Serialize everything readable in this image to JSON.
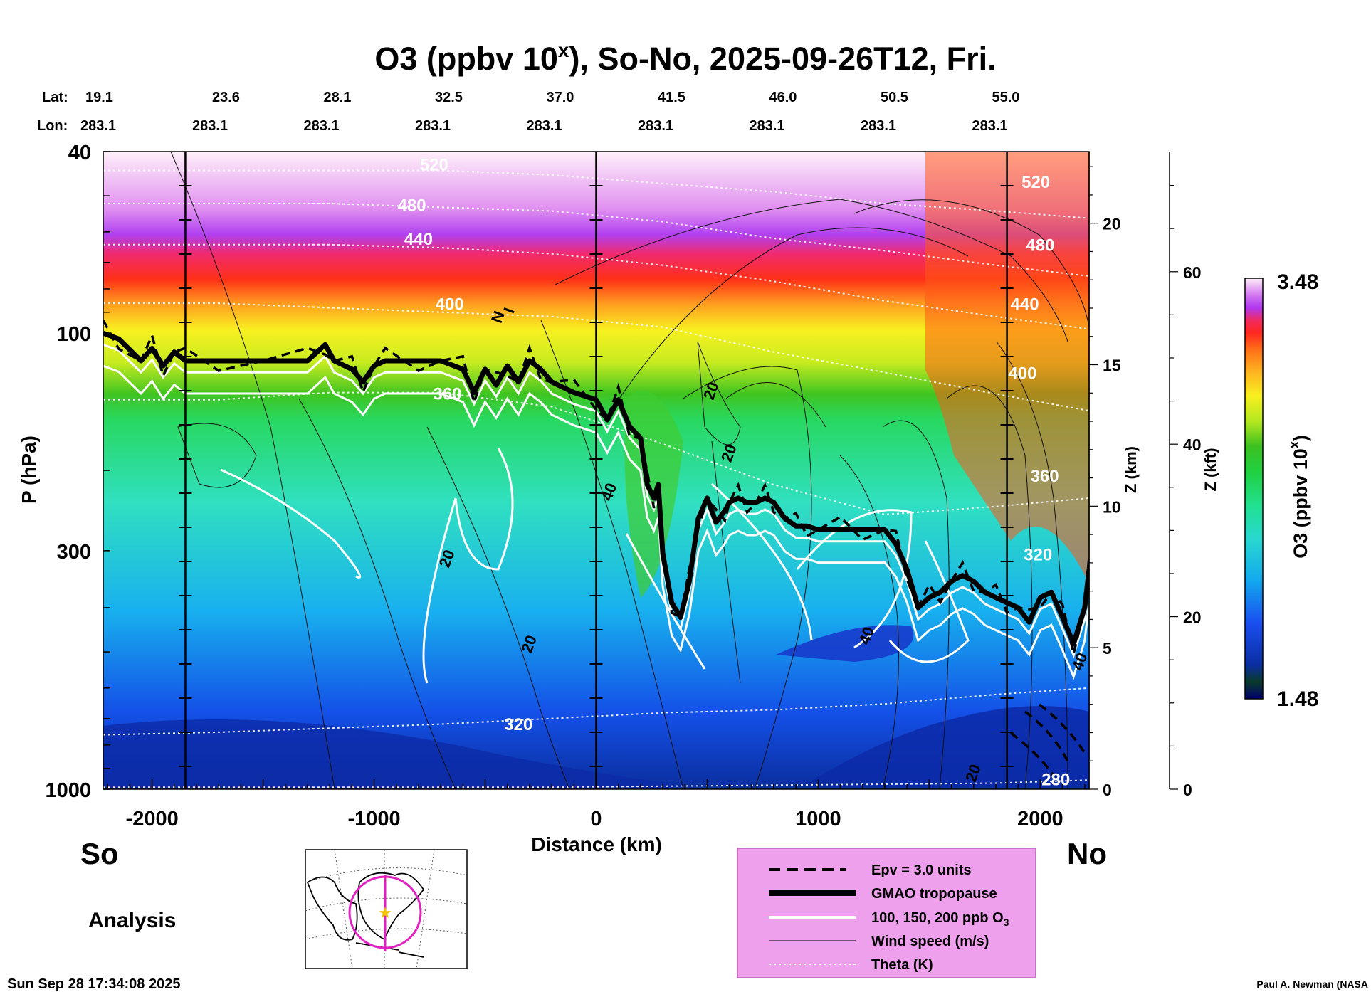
{
  "chart_data": {
    "type": "heatmap",
    "title_prefix": "O3 (ppbv 10",
    "title_sup": "x",
    "title_suffix": "), So-No, 2025-09-26T12, Fri.",
    "lat_label": "Lat:",
    "lon_label": "Lon:",
    "lats": [
      "19.1",
      "23.6",
      "28.1",
      "32.5",
      "37.0",
      "41.5",
      "46.0",
      "50.5",
      "55.0"
    ],
    "lons": [
      "283.1",
      "283.1",
      "283.1",
      "283.1",
      "283.1",
      "283.1",
      "283.1",
      "283.1",
      "283.1"
    ],
    "xlabel": "Distance (km)",
    "xlim": [
      -2220,
      2220
    ],
    "xticks": [
      -2000,
      -1000,
      0,
      1000,
      2000
    ],
    "xtick_labels": [
      "-2000",
      "-1000",
      "0",
      "1000",
      "2000"
    ],
    "ylabel": "P (hPa)",
    "ylim": [
      1000,
      40
    ],
    "yticks": [
      40,
      100,
      300,
      1000
    ],
    "ytick_labels": [
      "40",
      "100",
      "300",
      "1000"
    ],
    "z_km_label": "Z (km)",
    "z_km_ticks": [
      0,
      5,
      10,
      15,
      20
    ],
    "z_km_tick_labels": [
      "0",
      "5",
      "10",
      "15",
      "20"
    ],
    "z_kft_label": "Z (kft)",
    "z_kft_ticks": [
      0,
      20,
      40,
      60
    ],
    "z_kft_tick_labels": [
      "0",
      "20",
      "40",
      "60"
    ],
    "colorbar": {
      "label_prefix": "O3 (ppbv 10",
      "label_sup": "x",
      "label_suffix": ")",
      "min": 1.48,
      "max": 3.48,
      "min_label": "1.48",
      "max_label": "3.48"
    },
    "section_markers_km": [
      -1850,
      0,
      1850
    ],
    "theta_levels": [
      {
        "k": 280,
        "p": [
          990,
          990,
          990,
          990,
          990,
          985,
          980,
          975,
          970,
          955
        ]
      },
      {
        "k": 320,
        "p": [
          760,
          750,
          735,
          720,
          700,
          680,
          670,
          650,
          620,
          600
        ]
      },
      {
        "k": 360,
        "p": [
          140,
          140,
          135,
          135,
          145,
          175,
          215,
          250,
          240,
          230
        ]
      },
      {
        "k": 400,
        "p": [
          86,
          86,
          88,
          90,
          92,
          97,
          110,
          122,
          136,
          148
        ]
      },
      {
        "k": 440,
        "p": [
          64,
          64,
          64,
          65,
          67,
          71,
          77,
          85,
          92,
          98
        ]
      },
      {
        "k": 480,
        "p": [
          52,
          52,
          52,
          53,
          54,
          57,
          62,
          66,
          71,
          75
        ]
      },
      {
        "k": 520,
        "p": [
          44,
          44,
          44,
          44,
          45,
          47,
          49,
          52,
          54,
          56
        ]
      }
    ],
    "theta_x_km": [
      -2220,
      -1700,
      -1200,
      -700,
      -200,
      300,
      800,
      1300,
      1800,
      2220
    ],
    "theta_labels": [
      {
        "text": "520",
        "x_km": -730,
        "p": 44
      },
      {
        "text": "480",
        "x_km": -830,
        "p": 54
      },
      {
        "text": "440",
        "x_km": -800,
        "p": 64
      },
      {
        "text": "400",
        "x_km": -660,
        "p": 89
      },
      {
        "text": "360",
        "x_km": -670,
        "p": 140
      },
      {
        "text": "320",
        "x_km": -350,
        "p": 742
      },
      {
        "text": "520",
        "x_km": 1980,
        "p": 48
      },
      {
        "text": "480",
        "x_km": 2000,
        "p": 66
      },
      {
        "text": "440",
        "x_km": 1930,
        "p": 89
      },
      {
        "text": "400",
        "x_km": 1920,
        "p": 126
      },
      {
        "text": "360",
        "x_km": 2020,
        "p": 212
      },
      {
        "text": "320",
        "x_km": 1990,
        "p": 315
      },
      {
        "text": "280",
        "x_km": 2070,
        "p": 980
      }
    ],
    "tropopause": {
      "x_km": [
        -2220,
        -2150,
        -2050,
        -2000,
        -1950,
        -1900,
        -1850,
        -1700,
        -1500,
        -1300,
        -1220,
        -1180,
        -1100,
        -1050,
        -1000,
        -950,
        -800,
        -700,
        -600,
        -550,
        -500,
        -450,
        -400,
        -350,
        -300,
        -250,
        -200,
        -100,
        0,
        50,
        100,
        150,
        200,
        230,
        260,
        280,
        300,
        340,
        380,
        420,
        460,
        500,
        540,
        580,
        600,
        640,
        680,
        720,
        760,
        800,
        850,
        900,
        950,
        1000,
        1100,
        1200,
        1300,
        1350,
        1400,
        1450,
        1500,
        1550,
        1600,
        1650,
        1700,
        1750,
        1800,
        1850,
        1900,
        1950,
        2000,
        2050,
        2100,
        2150,
        2200,
        2220
      ],
      "p": [
        100,
        103,
        115,
        108,
        118,
        110,
        115,
        115,
        115,
        115,
        106,
        115,
        120,
        128,
        118,
        115,
        115,
        115,
        120,
        135,
        120,
        130,
        118,
        128,
        115,
        120,
        128,
        135,
        140,
        155,
        140,
        160,
        170,
        215,
        230,
        215,
        305,
        390,
        420,
        350,
        255,
        230,
        260,
        245,
        235,
        230,
        235,
        235,
        230,
        235,
        255,
        265,
        265,
        270,
        270,
        270,
        270,
        290,
        330,
        400,
        380,
        370,
        350,
        340,
        350,
        370,
        380,
        390,
        400,
        430,
        380,
        370,
        420,
        480,
        400,
        330
      ],
      "label": "GMAO tropopause"
    },
    "annotations": [
      {
        "text": "20",
        "x_km": -650,
        "p": 315
      },
      {
        "text": "20",
        "x_km": -280,
        "p": 485
      },
      {
        "text": "40",
        "x_km": 80,
        "p": 225
      },
      {
        "text": "20",
        "x_km": 540,
        "p": 135
      },
      {
        "text": "20",
        "x_km": 620,
        "p": 185
      },
      {
        "text": "40",
        "x_km": 1240,
        "p": 465
      },
      {
        "text": "20",
        "x_km": 1720,
        "p": 930
      },
      {
        "text": "40",
        "x_km": 2200,
        "p": 530
      },
      {
        "text": "N",
        "x_km": -420,
        "p": 93
      },
      {
        "text": "I",
        "x_km": -370,
        "p": 90
      }
    ],
    "legend": {
      "placement": "bottom-right",
      "items": [
        {
          "style": "dashed",
          "label": "Epv = 3.0 units"
        },
        {
          "style": "thick",
          "label": "GMAO tropopause"
        },
        {
          "style": "white",
          "label_main": "100, 150, 200 ppb O",
          "label_sub": "3"
        },
        {
          "style": "thin",
          "label": "Wind speed (m/s)"
        },
        {
          "style": "dotted",
          "label": "Theta (K)"
        }
      ]
    }
  },
  "labels": {
    "south": "So",
    "north": "No",
    "analysis": "Analysis",
    "timestamp": "Sun Sep 28 17:34:08 2025",
    "credit": "Paul A. Newman (NASA"
  },
  "colors": {
    "background": "#ffffff",
    "legend_bg": "#eea0ec",
    "legend_border": "#c060c0",
    "map_circle": "#e020c0",
    "map_star": "#f5c000"
  }
}
